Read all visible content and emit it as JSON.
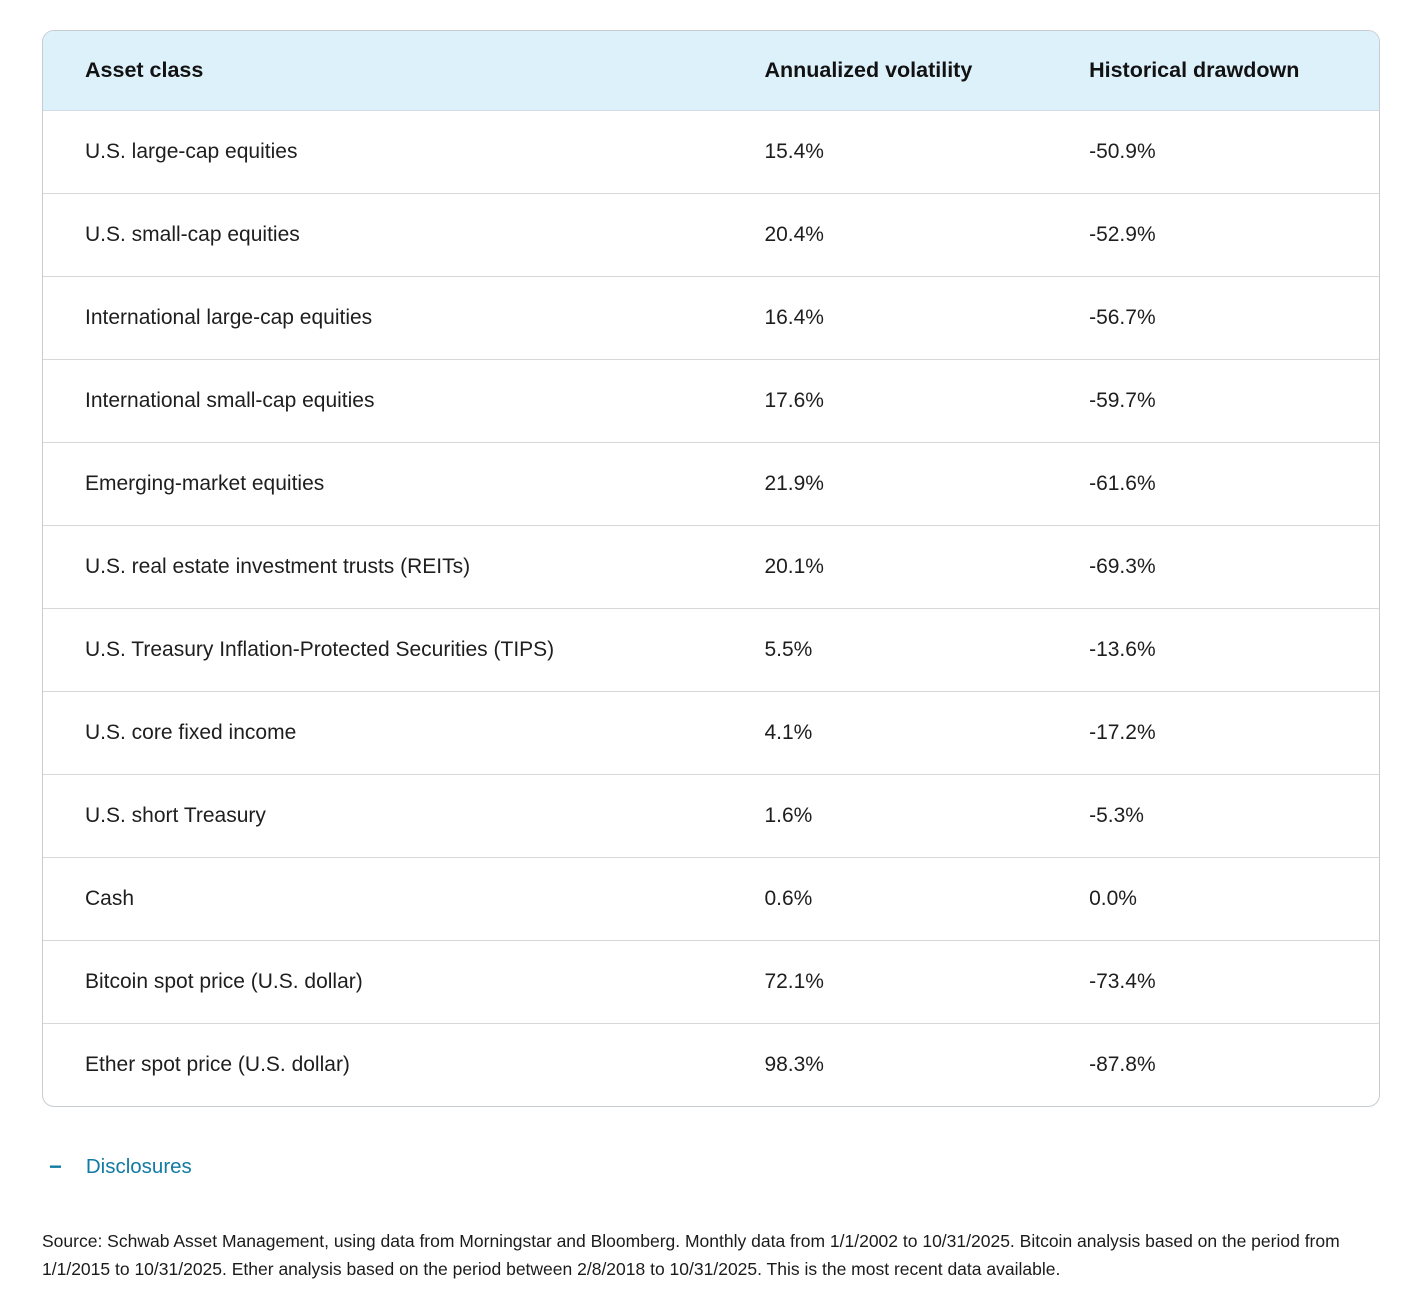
{
  "chart_data": {
    "type": "table",
    "columns": [
      "Asset class",
      "Annualized volatility",
      "Historical drawdown"
    ],
    "rows": [
      {
        "asset_class": "U.S. large-cap equities",
        "annualized_volatility": "15.4%",
        "historical_drawdown": "-50.9%"
      },
      {
        "asset_class": "U.S. small-cap equities",
        "annualized_volatility": "20.4%",
        "historical_drawdown": "-52.9%"
      },
      {
        "asset_class": "International large-cap equities",
        "annualized_volatility": "16.4%",
        "historical_drawdown": "-56.7%"
      },
      {
        "asset_class": "International small-cap equities",
        "annualized_volatility": "17.6%",
        "historical_drawdown": "-59.7%"
      },
      {
        "asset_class": "Emerging-market equities",
        "annualized_volatility": "21.9%",
        "historical_drawdown": "-61.6%"
      },
      {
        "asset_class": "U.S. real estate investment trusts (REITs)",
        "annualized_volatility": "20.1%",
        "historical_drawdown": "-69.3%"
      },
      {
        "asset_class": "U.S. Treasury Inflation-Protected Securities (TIPS)",
        "annualized_volatility": "5.5%",
        "historical_drawdown": "-13.6%"
      },
      {
        "asset_class": "U.S. core fixed income",
        "annualized_volatility": "4.1%",
        "historical_drawdown": "-17.2%"
      },
      {
        "asset_class": "U.S. short Treasury",
        "annualized_volatility": "1.6%",
        "historical_drawdown": "-5.3%"
      },
      {
        "asset_class": "Cash",
        "annualized_volatility": "0.6%",
        "historical_drawdown": "0.0%"
      },
      {
        "asset_class": "Bitcoin spot price (U.S. dollar)",
        "annualized_volatility": "72.1%",
        "historical_drawdown": "-73.4%"
      },
      {
        "asset_class": "Ether spot price (U.S. dollar)",
        "annualized_volatility": "98.3%",
        "historical_drawdown": "-87.8%"
      }
    ]
  },
  "disclosures": {
    "toggle_icon": "−",
    "label": "Disclosures"
  },
  "source_note": "Source: Schwab Asset Management, using data from Morningstar and Bloomberg. Monthly data from 1/1/2002 to 10/31/2025. Bitcoin analysis based on the period from 1/1/2015 to 10/31/2025. Ether analysis based on the period between 2/8/2018 to 10/31/2025. This is the most recent data available.",
  "colors": {
    "header_bg": "#ddf1fb",
    "link_blue": "#127ba3",
    "card_border": "#c7ccd0",
    "row_divider": "#d8d8d8"
  }
}
